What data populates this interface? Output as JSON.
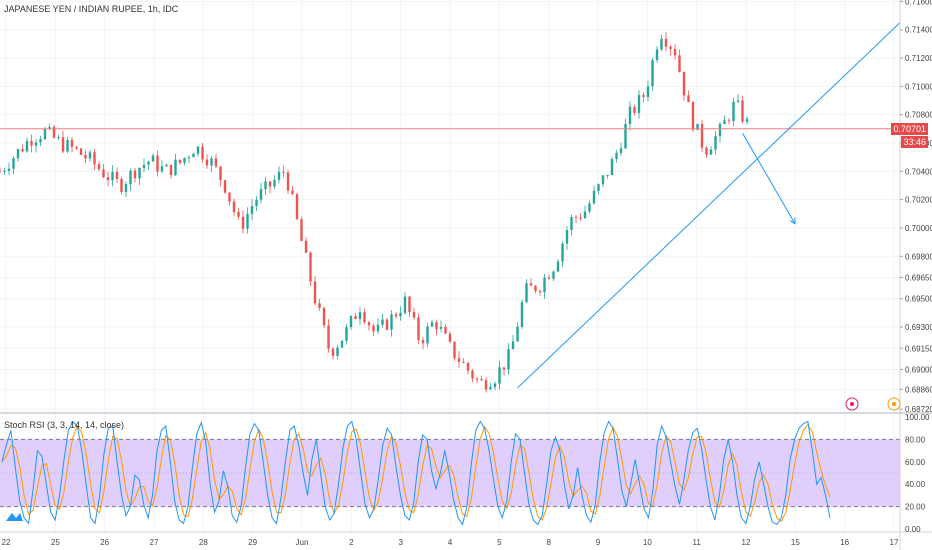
{
  "header": {
    "symbol_title": "JAPANESE YEN / INDIAN RUPEE, 1h, IDC"
  },
  "price_tags": {
    "last_price": "0.70701",
    "countdown": "33:46"
  },
  "indicator": {
    "label": "Stoch RSI (3, 3, 14, 14, close)"
  },
  "colors": {
    "up": "#26a69a",
    "down": "#ef5350",
    "last_price_line": "#f08080",
    "last_price_tag": "#e54b4b",
    "trendline": "#2196f3",
    "stoch_k": "#2196f3",
    "stoch_d": "#ff9800",
    "stoch_band": "#d8c3fb"
  },
  "chart_data": [
    {
      "type": "candlestick",
      "x_ticks": [
        "22",
        "25",
        "26",
        "27",
        "28",
        "29",
        "Jun",
        "2",
        "3",
        "4",
        "5",
        "8",
        "9",
        "10",
        "11",
        "12",
        "15",
        "16",
        "17"
      ],
      "y_ticks": [
        0.716,
        0.714,
        0.712,
        0.71,
        0.708,
        0.706,
        0.704,
        0.702,
        0.7,
        0.698,
        0.6965,
        0.695,
        0.693,
        0.6915,
        0.69,
        0.6886,
        0.6872
      ],
      "y_tick_labels": [
        "0.71600",
        "0.71400",
        "0.71200",
        "0.71000",
        "0.70800",
        "0.70600",
        "0.70400",
        "0.70200",
        "0.70000",
        "0.69800",
        "0.69650",
        "0.69500",
        "0.69300",
        "0.69150",
        "0.69000",
        "0.68860",
        "0.68720"
      ],
      "ylim": [
        0.687,
        0.7161
      ],
      "last_price": 0.70701,
      "close_path": [
        [
          0,
          0.704
        ],
        [
          2,
          0.7063
        ],
        [
          3,
          0.7068
        ],
        [
          4,
          0.706
        ],
        [
          5,
          0.7055
        ],
        [
          6,
          0.7048
        ],
        [
          7,
          0.7038
        ],
        [
          8,
          0.703
        ],
        [
          9,
          0.7041
        ],
        [
          10,
          0.7048
        ],
        [
          11,
          0.704
        ],
        [
          12,
          0.7046
        ],
        [
          13,
          0.7058
        ],
        [
          14,
          0.7048
        ],
        [
          15,
          0.703
        ],
        [
          16,
          0.7
        ],
        [
          17,
          0.702
        ],
        [
          18,
          0.703
        ],
        [
          19,
          0.7041
        ],
        [
          20,
          0.6995
        ],
        [
          21,
          0.695
        ],
        [
          22,
          0.6912
        ],
        [
          23,
          0.6925
        ],
        [
          24,
          0.6945
        ],
        [
          25,
          0.6925
        ],
        [
          26,
          0.6935
        ],
        [
          27,
          0.6948
        ],
        [
          28,
          0.692
        ],
        [
          29,
          0.6935
        ],
        [
          30,
          0.6915
        ],
        [
          31,
          0.6902
        ],
        [
          32,
          0.689
        ],
        [
          33,
          0.6895
        ],
        [
          34,
          0.691
        ],
        [
          35,
          0.6955
        ],
        [
          36,
          0.696
        ],
        [
          37,
          0.6975
        ],
        [
          38,
          0.7005
        ],
        [
          39,
          0.7012
        ],
        [
          40,
          0.703
        ],
        [
          41,
          0.705
        ],
        [
          42,
          0.708
        ],
        [
          43,
          0.7095
        ],
        [
          44,
          0.714
        ],
        [
          45,
          0.7125
        ],
        [
          46,
          0.708
        ],
        [
          47,
          0.7055
        ],
        [
          48,
          0.7068
        ],
        [
          49,
          0.7088
        ],
        [
          50,
          0.707
        ]
      ],
      "x_range": [
        0,
        60
      ],
      "annotations": {
        "trendline": [
          [
            34.5,
            0.6887
          ],
          [
            60,
            0.7145
          ]
        ],
        "arrow": [
          [
            49.5,
            0.7067
          ],
          [
            53,
            0.7003
          ]
        ]
      }
    },
    {
      "type": "line",
      "name": "Stoch RSI (3, 3, 14, 14, close)",
      "ylim": [
        0,
        100
      ],
      "y_tick_labels": [
        "100.00",
        "80.00",
        "60.00",
        "40.00",
        "20.00",
        "0.00"
      ],
      "band": [
        20,
        80
      ],
      "k_series": [
        60,
        75,
        88,
        55,
        25,
        10,
        5,
        35,
        70,
        65,
        40,
        15,
        8,
        30,
        62,
        88,
        96,
        92,
        70,
        40,
        10,
        5,
        28,
        66,
        90,
        92,
        60,
        30,
        12,
        20,
        48,
        44,
        22,
        10,
        30,
        70,
        88,
        92,
        60,
        25,
        8,
        5,
        20,
        55,
        85,
        95,
        78,
        40,
        15,
        25,
        52,
        38,
        12,
        6,
        20,
        55,
        85,
        94,
        88,
        60,
        30,
        10,
        5,
        28,
        60,
        88,
        92,
        75,
        50,
        30,
        62,
        80,
        48,
        20,
        8,
        14,
        40,
        72,
        92,
        96,
        80,
        50,
        22,
        10,
        18,
        45,
        75,
        90,
        84,
        55,
        30,
        12,
        8,
        24,
        60,
        84,
        80,
        52,
        36,
        50,
        70,
        50,
        26,
        10,
        4,
        20,
        58,
        88,
        96,
        90,
        70,
        44,
        20,
        10,
        25,
        60,
        85,
        80,
        50,
        22,
        8,
        4,
        12,
        40,
        70,
        82,
        70,
        40,
        18,
        30,
        55,
        30,
        12,
        6,
        22,
        60,
        86,
        96,
        90,
        62,
        34,
        20,
        40,
        62,
        40,
        18,
        10,
        35,
        76,
        92,
        82,
        60,
        38,
        22,
        44,
        70,
        86,
        90,
        72,
        44,
        20,
        8,
        30,
        62,
        80,
        60,
        30,
        10,
        5,
        20,
        45,
        60,
        40,
        20,
        6,
        4,
        10,
        30,
        62,
        80,
        90,
        94,
        96,
        70,
        40,
        46,
        30,
        10
      ]
    }
  ]
}
